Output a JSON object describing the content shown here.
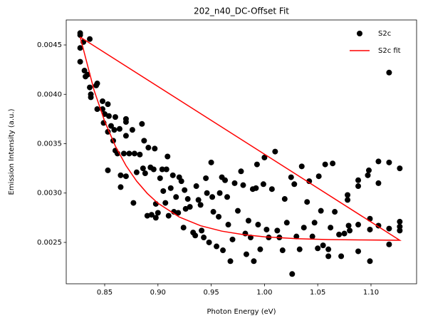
{
  "chart_data": {
    "type": "scatter",
    "title": "202_n40_DC-Offset Fit",
    "xlabel": "Photon Energy (eV)",
    "ylabel": "Emission Intensity (a.u.)",
    "xlim": [
      0.8139,
      1.1428
    ],
    "ylim": [
      0.002081,
      0.004753
    ],
    "xticks": [
      {
        "value": 0.85,
        "label": "0.85"
      },
      {
        "value": 0.9,
        "label": "0.90"
      },
      {
        "value": 0.95,
        "label": "0.95"
      },
      {
        "value": 1.0,
        "label": "1.00"
      },
      {
        "value": 1.05,
        "label": "1.05"
      },
      {
        "value": 1.1,
        "label": "1.10"
      }
    ],
    "yticks": [
      0.0025,
      {
        "value": 0.003,
        "label": "0.0030"
      },
      0.0035,
      {
        "value": 0.004,
        "label": "0.0040"
      },
      0.0045
    ],
    "legend": "upper right",
    "series": [
      {
        "name": "S2c",
        "type": "scatter",
        "color": "#000000",
        "x": [
          0.827,
          0.827,
          0.827,
          0.827,
          0.83,
          0.831,
          0.832,
          0.834,
          0.836,
          0.836,
          0.837,
          0.837,
          0.842,
          0.843,
          0.843,
          0.848,
          0.848,
          0.849,
          0.85,
          0.853,
          0.854,
          0.853,
          0.853,
          0.856,
          0.858,
          0.859,
          0.86,
          0.86,
          0.862,
          0.864,
          0.865,
          0.865,
          0.868,
          0.87,
          0.87,
          0.87,
          0.87,
          0.873,
          0.876,
          0.877,
          0.878,
          0.88,
          0.883,
          0.885,
          0.886,
          0.887,
          0.888,
          0.89,
          0.891,
          0.893,
          0.894,
          0.896,
          0.897,
          0.898,
          0.898,
          0.9,
          0.902,
          0.904,
          0.905,
          0.907,
          0.908,
          0.909,
          0.91,
          0.912,
          0.914,
          0.915,
          0.917,
          0.919,
          0.92,
          0.922,
          0.924,
          0.925,
          0.926,
          0.928,
          0.93,
          0.933,
          0.935,
          0.936,
          0.938,
          0.94,
          0.941,
          0.943,
          0.945,
          0.946,
          0.948,
          0.95,
          0.951,
          0.952,
          0.955,
          0.957,
          0.958,
          0.96,
          0.961,
          0.963,
          0.965,
          0.966,
          0.968,
          0.97,
          0.972,
          0.975,
          0.978,
          0.98,
          0.982,
          0.983,
          0.985,
          0.987,
          0.989,
          0.99,
          0.992,
          0.993,
          0.994,
          0.996,
          0.999,
          1.0,
          1.002,
          1.004,
          1.007,
          1.01,
          1.012,
          1.014,
          1.017,
          1.019,
          1.021,
          1.025,
          1.026,
          1.028,
          1.03,
          1.033,
          1.035,
          1.037,
          1.04,
          1.042,
          1.045,
          1.047,
          1.05,
          1.051,
          1.053,
          1.055,
          1.057,
          1.06,
          1.06,
          1.062,
          1.064,
          1.066,
          1.07,
          1.072,
          1.075,
          1.078,
          1.078,
          1.079,
          1.08,
          1.088,
          1.088,
          1.088,
          1.088,
          1.097,
          1.098,
          1.099,
          1.099,
          1.099,
          1.107,
          1.107,
          1.107,
          1.117,
          1.117,
          1.117,
          1.117,
          1.127,
          1.127,
          1.127,
          1.127
        ],
        "values": [
          0.00462,
          0.0046,
          0.00447,
          0.00433,
          0.00453,
          0.00424,
          0.00418,
          0.0042,
          0.00456,
          0.00407,
          0.004,
          0.00397,
          0.00409,
          0.00411,
          0.00385,
          0.00393,
          0.00385,
          0.00371,
          0.0038,
          0.0039,
          0.00378,
          0.00362,
          0.00323,
          0.00368,
          0.00353,
          0.00364,
          0.00377,
          0.00343,
          0.0034,
          0.00365,
          0.00318,
          0.00306,
          0.0034,
          0.00375,
          0.00372,
          0.00358,
          0.00317,
          0.0034,
          0.00364,
          0.0029,
          0.0034,
          0.00321,
          0.00339,
          0.0037,
          0.00325,
          0.00353,
          0.0032,
          0.00277,
          0.00346,
          0.00326,
          0.00278,
          0.00324,
          0.00345,
          0.00289,
          0.00275,
          0.0028,
          0.00315,
          0.00324,
          0.00302,
          0.0029,
          0.00324,
          0.00337,
          0.00277,
          0.00305,
          0.00318,
          0.00281,
          0.00296,
          0.0028,
          0.00316,
          0.00312,
          0.00265,
          0.00303,
          0.00284,
          0.00294,
          0.00286,
          0.0026,
          0.00257,
          0.00307,
          0.00293,
          0.00288,
          0.00262,
          0.00255,
          0.00315,
          0.003,
          0.0025,
          0.00331,
          0.00296,
          0.00281,
          0.00246,
          0.00276,
          0.003,
          0.00316,
          0.00242,
          0.00313,
          0.00296,
          0.00268,
          0.00231,
          0.00253,
          0.0031,
          0.00282,
          0.00322,
          0.00308,
          0.00259,
          0.00238,
          0.00272,
          0.00255,
          0.00304,
          0.00231,
          0.00305,
          0.00329,
          0.00268,
          0.00243,
          0.00309,
          0.00336,
          0.00263,
          0.00255,
          0.00304,
          0.00342,
          0.00262,
          0.00255,
          0.00242,
          0.00294,
          0.0027,
          0.00316,
          0.00218,
          0.00309,
          0.00256,
          0.00243,
          0.00327,
          0.00265,
          0.00291,
          0.00312,
          0.00256,
          0.0027,
          0.00244,
          0.00317,
          0.00282,
          0.00247,
          0.00329,
          0.00236,
          0.00243,
          0.00265,
          0.0033,
          0.00281,
          0.00258,
          0.00236,
          0.00259,
          0.00298,
          0.00293,
          0.00267,
          0.00262,
          0.00307,
          0.00313,
          0.00268,
          0.00241,
          0.00318,
          0.00323,
          0.00274,
          0.00231,
          0.00263,
          0.00332,
          0.0031,
          0.00267,
          0.00422,
          0.00331,
          0.00264,
          0.00248,
          0.00325,
          0.00271,
          0.00266,
          0.00262
        ]
      },
      {
        "name": "S2c fit",
        "type": "line",
        "color": "#ff0000",
        "x": [
          0.827,
          0.84,
          0.85,
          0.86,
          0.87,
          0.88,
          0.89,
          0.9,
          0.92,
          0.94,
          0.96,
          0.98,
          1.0,
          1.03,
          1.06,
          1.09,
          1.127,
          0.827
        ],
        "values": [
          0.00458,
          0.004042,
          0.003727,
          0.003476,
          0.003278,
          0.003121,
          0.002996,
          0.002897,
          0.002757,
          0.002669,
          0.002614,
          0.002579,
          0.002557,
          0.002538,
          0.002529,
          0.002525,
          0.002522,
          0.00458
        ]
      }
    ]
  }
}
